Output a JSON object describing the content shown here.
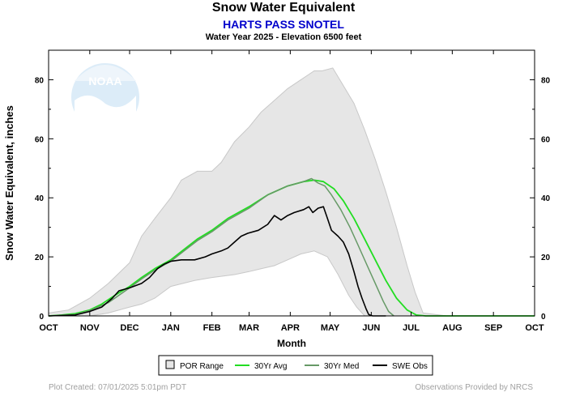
{
  "header": {
    "title": "Snow Water Equivalent",
    "station": "HARTS PASS SNOTEL",
    "subtitle": "Water Year 2025 -  Elevation 6500 feet"
  },
  "watermark": {
    "text": "NOAA",
    "color": "#dcecf8"
  },
  "footer": {
    "left": "Plot Created: 07/01/2025 5:01pm PDT",
    "right": "Observations Provided by NRCS"
  },
  "colors": {
    "por_fill": "#e6e6e6",
    "por_stroke": "#c8c8c8",
    "avg": "#22dd22",
    "med": "#669966",
    "obs": "#000000",
    "station_text": "#0000cc"
  },
  "chart_data": {
    "type": "area",
    "title": "Snow Water Equivalent",
    "xlabel": "Month",
    "ylabel": "Snow Water Equivalent, inches",
    "ylim": [
      0,
      90
    ],
    "yticks": [
      0,
      20,
      40,
      60,
      80
    ],
    "xlim": [
      0,
      366
    ],
    "month_labels": [
      "OCT",
      "NOV",
      "DEC",
      "JAN",
      "FEB",
      "MAR",
      "APR",
      "MAY",
      "JUN",
      "JUL",
      "AUG",
      "SEP",
      "OCT"
    ],
    "month_positions": [
      0,
      31,
      61,
      92,
      123,
      151,
      182,
      212,
      243,
      273,
      304,
      335,
      366
    ],
    "grid": false,
    "legend_position": "bottom",
    "legend": [
      "POR Range",
      "30Yr Avg",
      "30Yr Med",
      "SWE Obs"
    ],
    "series": [
      {
        "name": "POR Range",
        "kind": "band",
        "upper": [
          [
            0,
            1
          ],
          [
            15,
            2
          ],
          [
            31,
            6
          ],
          [
            45,
            11
          ],
          [
            61,
            18
          ],
          [
            70,
            27
          ],
          [
            80,
            33
          ],
          [
            92,
            40
          ],
          [
            100,
            46
          ],
          [
            112,
            49
          ],
          [
            123,
            49
          ],
          [
            130,
            52
          ],
          [
            140,
            59
          ],
          [
            151,
            64
          ],
          [
            160,
            69
          ],
          [
            170,
            73
          ],
          [
            180,
            77
          ],
          [
            190,
            80
          ],
          [
            200,
            83
          ],
          [
            206,
            83
          ],
          [
            214,
            84
          ],
          [
            222,
            78
          ],
          [
            230,
            72
          ],
          [
            238,
            63
          ],
          [
            246,
            53
          ],
          [
            254,
            42
          ],
          [
            262,
            30
          ],
          [
            270,
            17
          ],
          [
            276,
            8
          ],
          [
            282,
            1
          ],
          [
            300,
            0
          ],
          [
            340,
            0
          ],
          [
            366,
            0
          ]
        ],
        "lower": [
          [
            0,
            0
          ],
          [
            31,
            0
          ],
          [
            45,
            1
          ],
          [
            61,
            3
          ],
          [
            70,
            4
          ],
          [
            80,
            6
          ],
          [
            92,
            10
          ],
          [
            110,
            12
          ],
          [
            123,
            13
          ],
          [
            140,
            14
          ],
          [
            151,
            15
          ],
          [
            160,
            16
          ],
          [
            170,
            17
          ],
          [
            180,
            19
          ],
          [
            190,
            21
          ],
          [
            200,
            22
          ],
          [
            210,
            20
          ],
          [
            218,
            14
          ],
          [
            226,
            7
          ],
          [
            232,
            3
          ],
          [
            238,
            0
          ],
          [
            366,
            0
          ]
        ]
      },
      {
        "name": "30Yr Avg",
        "kind": "line",
        "points": [
          [
            0,
            0
          ],
          [
            10,
            0.3
          ],
          [
            20,
            0.8
          ],
          [
            31,
            2
          ],
          [
            40,
            4
          ],
          [
            50,
            7
          ],
          [
            61,
            10
          ],
          [
            70,
            13
          ],
          [
            80,
            16
          ],
          [
            92,
            19
          ],
          [
            102,
            22.5
          ],
          [
            112,
            26
          ],
          [
            123,
            29
          ],
          [
            135,
            33
          ],
          [
            151,
            37
          ],
          [
            165,
            41
          ],
          [
            180,
            44
          ],
          [
            192,
            45.5
          ],
          [
            200,
            46
          ],
          [
            207,
            45.5
          ],
          [
            215,
            43
          ],
          [
            222,
            39
          ],
          [
            230,
            33
          ],
          [
            238,
            26
          ],
          [
            246,
            19
          ],
          [
            254,
            12
          ],
          [
            262,
            6
          ],
          [
            270,
            2
          ],
          [
            277,
            0.3
          ],
          [
            284,
            0
          ],
          [
            366,
            0
          ]
        ]
      },
      {
        "name": "30Yr Med",
        "kind": "line",
        "points": [
          [
            0,
            0
          ],
          [
            20,
            0.5
          ],
          [
            31,
            1.8
          ],
          [
            45,
            4.5
          ],
          [
            61,
            9.5
          ],
          [
            70,
            12.5
          ],
          [
            80,
            15.5
          ],
          [
            92,
            18.5
          ],
          [
            102,
            22
          ],
          [
            112,
            25.5
          ],
          [
            123,
            28.5
          ],
          [
            135,
            32.5
          ],
          [
            151,
            36.5
          ],
          [
            165,
            41
          ],
          [
            180,
            44
          ],
          [
            192,
            45.5
          ],
          [
            198,
            46.5
          ],
          [
            203,
            45
          ],
          [
            208,
            44
          ],
          [
            213,
            41
          ],
          [
            220,
            36
          ],
          [
            227,
            30
          ],
          [
            233,
            24
          ],
          [
            240,
            17
          ],
          [
            246,
            11
          ],
          [
            252,
            5
          ],
          [
            256,
            1.5
          ],
          [
            260,
            0
          ]
        ]
      },
      {
        "name": "SWE Obs",
        "kind": "line",
        "points": [
          [
            0,
            0
          ],
          [
            20,
            0.3
          ],
          [
            31,
            1.5
          ],
          [
            40,
            3
          ],
          [
            48,
            6
          ],
          [
            53,
            8.5
          ],
          [
            61,
            9.5
          ],
          [
            70,
            11
          ],
          [
            76,
            13
          ],
          [
            82,
            16
          ],
          [
            87,
            17.5
          ],
          [
            92,
            18.5
          ],
          [
            100,
            19
          ],
          [
            110,
            19
          ],
          [
            118,
            20
          ],
          [
            123,
            21
          ],
          [
            130,
            22
          ],
          [
            135,
            23
          ],
          [
            140,
            25
          ],
          [
            145,
            27
          ],
          [
            150,
            28
          ],
          [
            158,
            29
          ],
          [
            165,
            31
          ],
          [
            170,
            34
          ],
          [
            175,
            32.5
          ],
          [
            180,
            34
          ],
          [
            185,
            35
          ],
          [
            192,
            36
          ],
          [
            196,
            37
          ],
          [
            199,
            35
          ],
          [
            203,
            36.5
          ],
          [
            207,
            37
          ],
          [
            210,
            33
          ],
          [
            213,
            29
          ],
          [
            218,
            27
          ],
          [
            222,
            25
          ],
          [
            226,
            21
          ],
          [
            230,
            15
          ],
          [
            233,
            10
          ],
          [
            236,
            6
          ],
          [
            239,
            2.5
          ],
          [
            241,
            0.5
          ],
          [
            244,
            0
          ],
          [
            254,
            0
          ]
        ]
      }
    ]
  }
}
